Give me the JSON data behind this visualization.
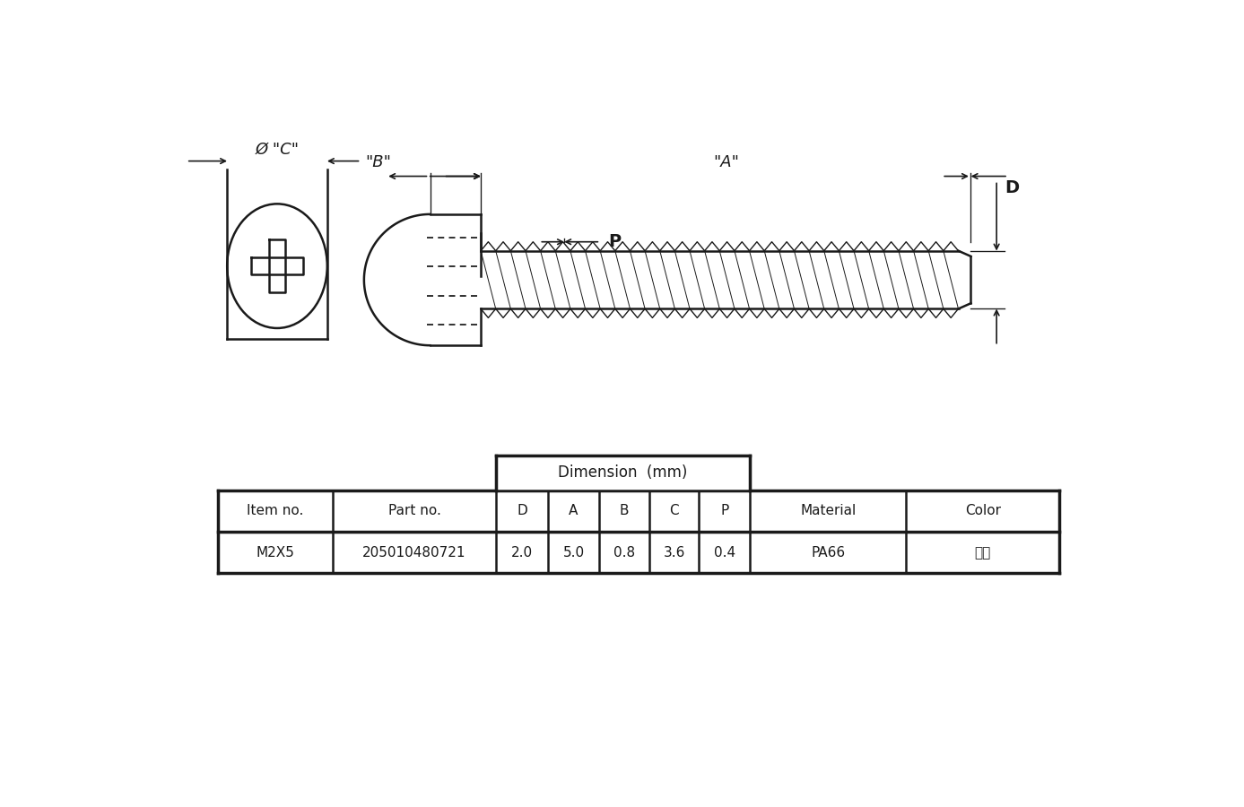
{
  "bg_color": "#ffffff",
  "line_color": "#1a1a1a",
  "table_header": "Dimension  (mm)",
  "col_headers": [
    "Item no.",
    "Part no.",
    "D",
    "A",
    "B",
    "C",
    "P",
    "Material",
    "Color"
  ],
  "row_data": [
    "M2X5",
    "205010480721",
    "2.0",
    "5.0",
    "0.8",
    "3.6",
    "0.4",
    "PA66",
    "本色"
  ],
  "dim_label_A": "\"A\"",
  "dim_label_B": "\"B\"",
  "dim_label_C": "Ø \"C\"",
  "dim_label_D": "D",
  "dim_label_P": "P",
  "fig_width": 13.87,
  "fig_height": 9.0
}
